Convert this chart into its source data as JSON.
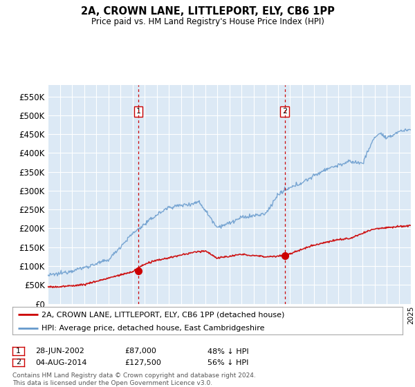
{
  "title": "2A, CROWN LANE, LITTLEPORT, ELY, CB6 1PP",
  "subtitle": "Price paid vs. HM Land Registry's House Price Index (HPI)",
  "ylim": [
    0,
    580000
  ],
  "yticks": [
    0,
    50000,
    100000,
    150000,
    200000,
    250000,
    300000,
    350000,
    400000,
    450000,
    500000,
    550000
  ],
  "ytick_labels": [
    "£0",
    "£50K",
    "£100K",
    "£150K",
    "£200K",
    "£250K",
    "£300K",
    "£350K",
    "£400K",
    "£450K",
    "£500K",
    "£550K"
  ],
  "xstart_year": 1995,
  "xend_year": 2025,
  "sale1_date": 2002.49,
  "sale1_price": 87000,
  "sale1_label": "1",
  "sale1_text": "28-JUN-2002",
  "sale1_price_text": "£87,000",
  "sale1_pct_text": "48% ↓ HPI",
  "sale2_date": 2014.59,
  "sale2_price": 127500,
  "sale2_label": "2",
  "sale2_text": "04-AUG-2014",
  "sale2_price_text": "£127,500",
  "sale2_pct_text": "56% ↓ HPI",
  "bg_color": "#dce9f5",
  "grid_color": "#ffffff",
  "red_line_color": "#cc0000",
  "blue_line_color": "#6699cc",
  "legend_label1": "2A, CROWN LANE, LITTLEPORT, ELY, CB6 1PP (detached house)",
  "legend_label2": "HPI: Average price, detached house, East Cambridgeshire",
  "footer_text": "Contains HM Land Registry data © Crown copyright and database right 2024.\nThis data is licensed under the Open Government Licence v3.0.",
  "marker_box_color": "#cc0000"
}
